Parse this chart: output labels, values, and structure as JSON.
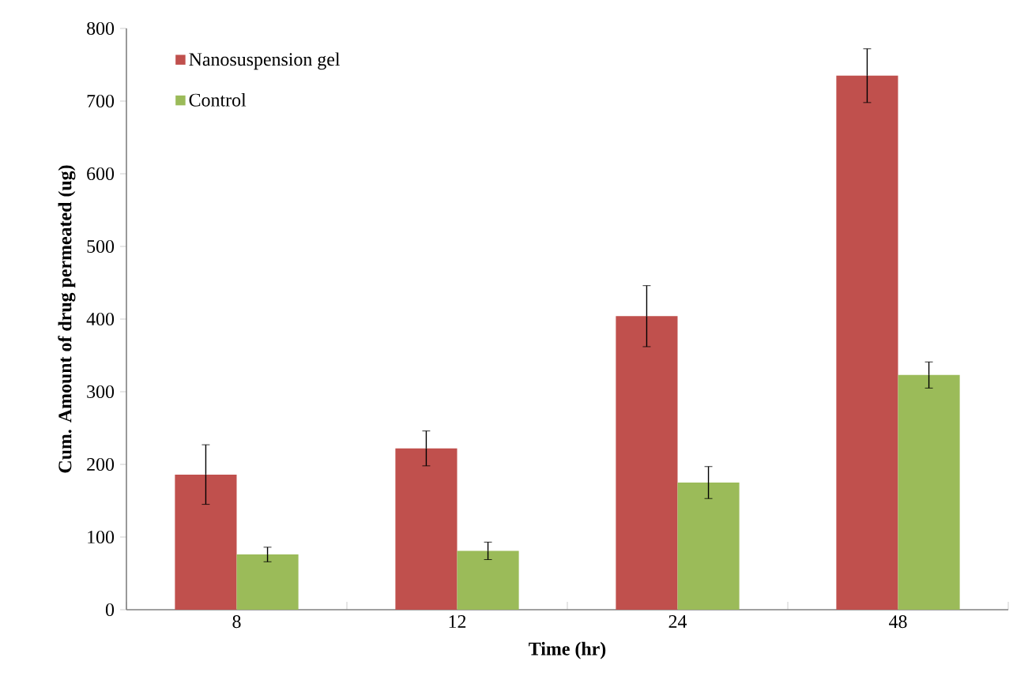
{
  "chart_data": {
    "type": "bar",
    "xlabel": "Time (hr)",
    "ylabel": "Cum. Amount of drug permeated (ug)",
    "categories": [
      "8",
      "12",
      "24",
      "48"
    ],
    "series": [
      {
        "name": "Nanosuspension gel",
        "color": "#c0504d",
        "values": [
          186,
          222,
          404,
          735
        ],
        "errors": [
          41,
          24,
          42,
          37
        ]
      },
      {
        "name": "Control",
        "color": "#9bbb59",
        "values": [
          76,
          81,
          175,
          323
        ],
        "errors": [
          10,
          12,
          22,
          18
        ]
      }
    ],
    "ylim": [
      0,
      800
    ],
    "yticks": [
      0,
      100,
      200,
      300,
      400,
      500,
      600,
      700,
      800
    ],
    "grid": false,
    "legend": "top left"
  }
}
